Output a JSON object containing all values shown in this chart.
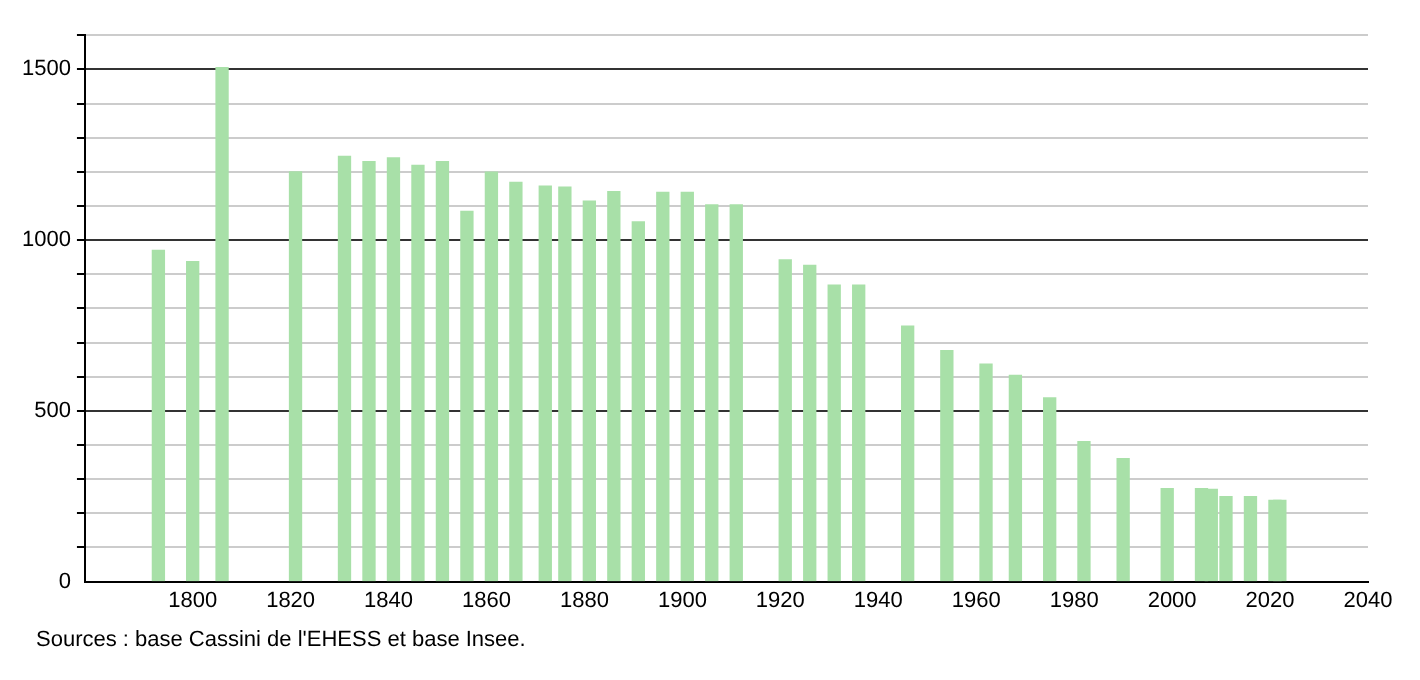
{
  "chart_data": {
    "type": "bar",
    "x": [
      1793,
      1800,
      1806,
      1821,
      1831,
      1836,
      1841,
      1846,
      1851,
      1856,
      1861,
      1866,
      1872,
      1876,
      1881,
      1886,
      1891,
      1896,
      1901,
      1906,
      1911,
      1921,
      1926,
      1931,
      1936,
      1946,
      1954,
      1962,
      1968,
      1975,
      1982,
      1990,
      1999,
      2006,
      2008,
      2011,
      2016,
      2021,
      2022
    ],
    "values": [
      970,
      937,
      1505,
      1200,
      1245,
      1230,
      1241,
      1219,
      1230,
      1084,
      1199,
      1169,
      1158,
      1155,
      1114,
      1142,
      1053,
      1140,
      1140,
      1103,
      1103,
      942,
      926,
      868,
      868,
      748,
      676,
      637,
      604,
      538,
      410,
      360,
      272,
      272,
      270,
      249,
      249,
      238,
      238
    ],
    "color": "#a8e0a8",
    "xlim": [
      1778,
      2040
    ],
    "xticks": [
      1800,
      1820,
      1840,
      1860,
      1880,
      1900,
      1920,
      1940,
      1960,
      1980,
      2000,
      2020,
      2040
    ],
    "ylim": [
      0,
      1600
    ],
    "yticks": [
      0,
      {
        "value": 100,
        "label": null
      },
      {
        "value": 200,
        "label": null
      },
      {
        "value": 300,
        "label": null
      },
      {
        "value": 400,
        "label": null
      },
      500,
      {
        "value": 600,
        "label": null
      },
      {
        "value": 700,
        "label": null
      },
      {
        "value": 800,
        "label": null
      },
      {
        "value": 900,
        "label": null
      },
      1000,
      {
        "value": 1100,
        "label": null
      },
      {
        "value": 1200,
        "label": null
      },
      {
        "value": 1300,
        "label": null
      },
      {
        "value": 1400,
        "label": null
      },
      1500,
      {
        "value": 1600,
        "label": null
      }
    ],
    "grid": "y",
    "legend": false,
    "annotations": [
      "Sources : base Cassini de l'EHESS et base Insee."
    ]
  }
}
